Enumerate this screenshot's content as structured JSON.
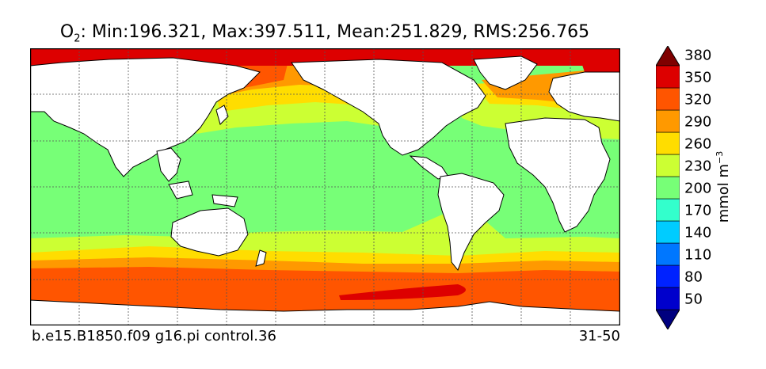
{
  "title": {
    "variable": "O",
    "subscript": "2",
    "stats": ": Min:196.321, Max:397.511, Mean:251.829, RMS:256.765"
  },
  "footer": {
    "case": "b.e15.B1850.f09 g16.pi control.36",
    "years": "31-50"
  },
  "colorbar": {
    "units_base": "mmol m",
    "units_exp": "−3",
    "levels": [
      "50",
      "80",
      "110",
      "140",
      "170",
      "200",
      "230",
      "260",
      "290",
      "320",
      "350",
      "380"
    ],
    "colors": [
      "#00007f",
      "#0000cc",
      "#0022ff",
      "#0077ff",
      "#00ccff",
      "#33ffcc",
      "#77ff77",
      "#ccff33",
      "#ffdd00",
      "#ff9900",
      "#ff5500",
      "#dd0000",
      "#7f0000"
    ]
  },
  "colors": {
    "land": "#ffffff",
    "coast": "#000000",
    "grid": "#555555"
  }
}
